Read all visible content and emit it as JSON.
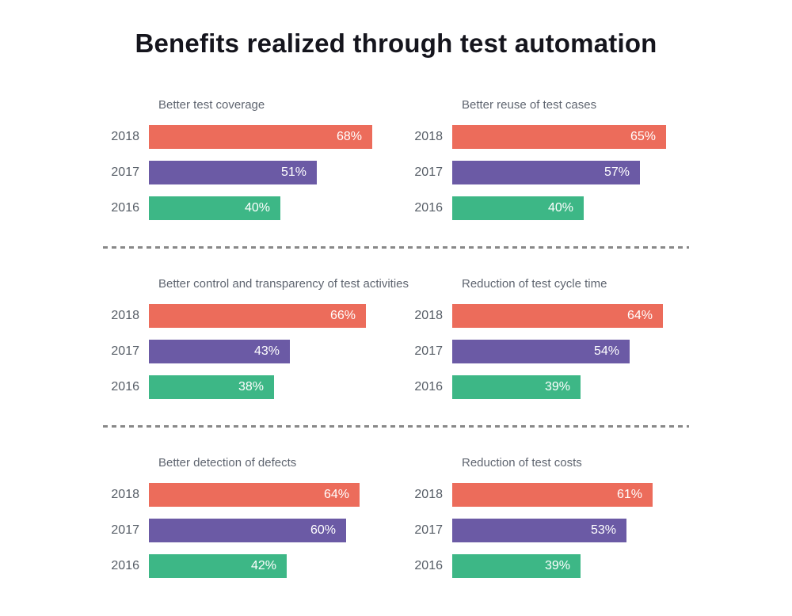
{
  "title": "Benefits realized through test automation",
  "chart_data": {
    "type": "bar",
    "orientation": "horizontal",
    "layout": "small-multiples 3 rows x 2 columns",
    "title": "Benefits realized through test automation",
    "categories": [
      "2018",
      "2017",
      "2016"
    ],
    "series_colors": [
      "#EC6C5B",
      "#6B5AA5",
      "#3DB786"
    ],
    "value_suffix": "%",
    "xlim": [
      0,
      100
    ],
    "grid": false,
    "legend": "none",
    "charts": [
      {
        "title": "Better test coverage",
        "values": [
          68,
          51,
          40
        ],
        "labels": [
          "68%",
          "51%",
          "40%"
        ]
      },
      {
        "title": "Better reuse of test cases",
        "values": [
          65,
          57,
          40
        ],
        "labels": [
          "65%",
          "57%",
          "40%"
        ]
      },
      {
        "title": "Better control and transparency of test activities",
        "values": [
          66,
          43,
          38
        ],
        "labels": [
          "66%",
          "43%",
          "38%"
        ]
      },
      {
        "title": "Reduction of test cycle time",
        "values": [
          64,
          54,
          39
        ],
        "labels": [
          "64%",
          "54%",
          "39%"
        ]
      },
      {
        "title": "Better detection of defects",
        "values": [
          64,
          60,
          42
        ],
        "labels": [
          "64%",
          "60%",
          "42%"
        ]
      },
      {
        "title": "Reduction of test costs",
        "values": [
          61,
          53,
          39
        ],
        "labels": [
          "61%",
          "53%",
          "39%"
        ]
      }
    ]
  },
  "colors": {
    "background": "#FFFFFF",
    "title_text": "#15151D",
    "chart_title_text": "#5F6570",
    "year_label_text": "#565D66",
    "value_label_text": "#FFFFFF",
    "divider": "#888888"
  }
}
